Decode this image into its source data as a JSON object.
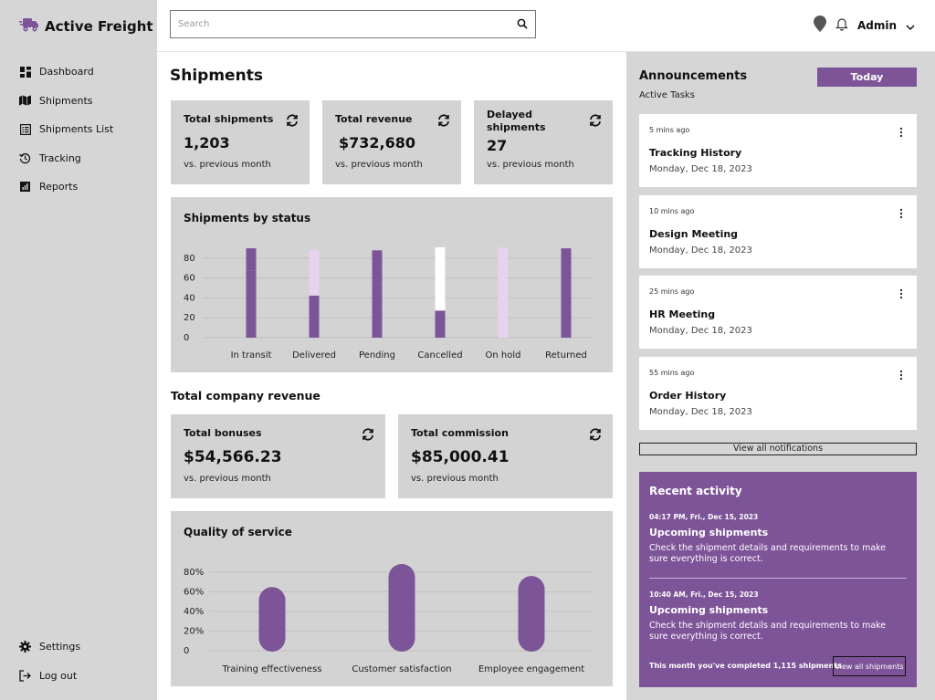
{
  "brand": {
    "name": "Active Freight",
    "icon": "truck-icon"
  },
  "sidebar": {
    "items": [
      {
        "label": "Dashboard",
        "icon": "grid-icon"
      },
      {
        "label": "Shipments",
        "icon": "map-icon"
      },
      {
        "label": "Shipments List",
        "icon": "list-icon"
      },
      {
        "label": "Tracking",
        "icon": "history-icon"
      },
      {
        "label": "Reports",
        "icon": "chart-icon"
      }
    ],
    "bottom": [
      {
        "label": "Settings",
        "icon": "gear-icon"
      },
      {
        "label": "Log out",
        "icon": "logout-icon"
      }
    ]
  },
  "topbar": {
    "search_placeholder": "Search",
    "user": "Admin"
  },
  "main": {
    "title": "Shipments",
    "stats": [
      {
        "title": "Total shipments",
        "value": "1,203",
        "sub": "vs. previous month"
      },
      {
        "title": "Total revenue",
        "value": "$732,680",
        "sub": "vs. previous month"
      },
      {
        "title": "Delayed shipments",
        "value": "27",
        "sub": "vs. previous month"
      }
    ],
    "revenue_title": "Total company revenue",
    "revenue_stats": [
      {
        "title": "Total bonuses",
        "value": "$54,566.23",
        "sub": "vs. previous month"
      },
      {
        "title": "Total commission",
        "value": "$85,000.41",
        "sub": "vs. previous month"
      }
    ]
  },
  "chart_data": [
    {
      "type": "bar",
      "title": "Shipments by status",
      "categories": [
        "In transit",
        "Delivered",
        "Pending",
        "Cancelled",
        "On hold",
        "Returned"
      ],
      "series": [
        {
          "values": [
            67,
            42,
            54,
            27,
            0,
            40
          ]
        },
        {
          "values": [
            0,
            45,
            0,
            0,
            90,
            0
          ]
        },
        {
          "values": [
            22,
            0,
            33,
            0,
            0,
            49
          ]
        },
        {
          "values": [
            0,
            0,
            0,
            63,
            0,
            0
          ]
        }
      ],
      "ylim": [
        0,
        90
      ],
      "yticks": [
        "80",
        "60",
        "40",
        "20",
        "0"
      ],
      "colors": [
        "#7e5499",
        "#e8d2f2",
        "#7e5499",
        "#ffffff"
      ]
    },
    {
      "type": "bar",
      "title": "Quality of service",
      "categories": [
        "Training effectiveness",
        "Customer satisfaction",
        "Employee engagement"
      ],
      "values": [
        70,
        95,
        82
      ],
      "ylim": [
        0,
        100
      ],
      "yticks": [
        "80%",
        "60%",
        "40%",
        "20%",
        "0"
      ],
      "colors": [
        "#7e5499"
      ]
    }
  ],
  "announcements": {
    "title": "Announcements",
    "subtitle": "Active Tasks",
    "today_label": "Today",
    "items": [
      {
        "time": "5 mins ago",
        "title": "Tracking History",
        "date": "Monday, Dec 18, 2023"
      },
      {
        "time": "10 mins ago",
        "title": "Design Meeting",
        "date": "Monday, Dec 18, 2023"
      },
      {
        "time": "25 mins ago",
        "title": "HR Meeting",
        "date": "Monday, Dec 18, 2023"
      },
      {
        "time": "55 mins ago",
        "title": "Order History",
        "date": "Monday, Dec 18, 2023"
      }
    ],
    "view_all_label": "View all notifications"
  },
  "activity": {
    "title": "Recent activity",
    "items": [
      {
        "time": "04:17 PM, Fri., Dec 15, 2023",
        "title": "Upcoming shipments",
        "desc": "Check the shipment details and requirements to make sure everything is correct."
      },
      {
        "time": "10:40 AM, Fri., Dec 15, 2023",
        "title": "Upcoming shipments",
        "desc": "Check the shipment details and requirements to make sure everything is correct."
      }
    ],
    "footer": "This month you've completed 1,115 shipments",
    "view_all_label": "View all shipments"
  },
  "colors": {
    "accent": "#7e5499",
    "light_accent": "#e8d2f2",
    "panel": "#d3d3d3"
  }
}
